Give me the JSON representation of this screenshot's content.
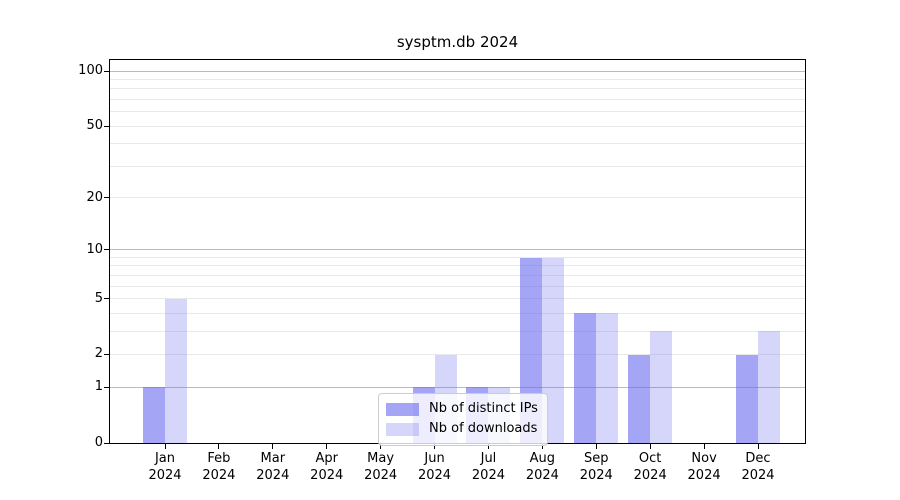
{
  "chart_data": {
    "type": "bar",
    "title": "sysptm.db 2024",
    "categories": [
      "Jan 2024",
      "Feb 2024",
      "Mar 2024",
      "Apr 2024",
      "May 2024",
      "Jun 2024",
      "Jul 2024",
      "Aug 2024",
      "Sep 2024",
      "Oct 2024",
      "Nov 2024",
      "Dec 2024"
    ],
    "months": [
      "Jan",
      "Feb",
      "Mar",
      "Apr",
      "May",
      "Jun",
      "Jul",
      "Aug",
      "Sep",
      "Oct",
      "Nov",
      "Dec"
    ],
    "year": "2024",
    "series": [
      {
        "name": "Nb of distinct IPs",
        "color": "rgba(105,105,240,0.60)",
        "values": [
          1,
          0,
          0,
          0,
          0,
          1,
          1,
          9,
          4,
          2,
          0,
          2
        ]
      },
      {
        "name": "Nb of downloads",
        "color": "rgba(105,105,240,0.27)",
        "values": [
          5,
          0,
          0,
          0,
          0,
          2,
          1,
          9,
          4,
          3,
          0,
          3
        ]
      }
    ],
    "xlabel": "",
    "ylabel": "",
    "yscale": "log1p",
    "ylim": [
      0,
      114
    ],
    "y_tick_values": [
      0,
      1,
      2,
      5,
      10,
      20,
      50,
      100
    ],
    "y_tick_labels": [
      "0",
      "1",
      "2",
      "5",
      "10",
      "20",
      "50",
      "100"
    ],
    "grid": {
      "on": true,
      "major_values": [
        1,
        10,
        100
      ],
      "minor_values": [
        2,
        3,
        4,
        5,
        6,
        7,
        8,
        9,
        20,
        30,
        40,
        50,
        60,
        70,
        80,
        90
      ],
      "major_color": "#bbbbbb",
      "minor_color": "#e9e9e9"
    },
    "legend": {
      "position": "lower center",
      "entries": [
        "Nb of distinct IPs",
        "Nb of downloads"
      ]
    }
  }
}
